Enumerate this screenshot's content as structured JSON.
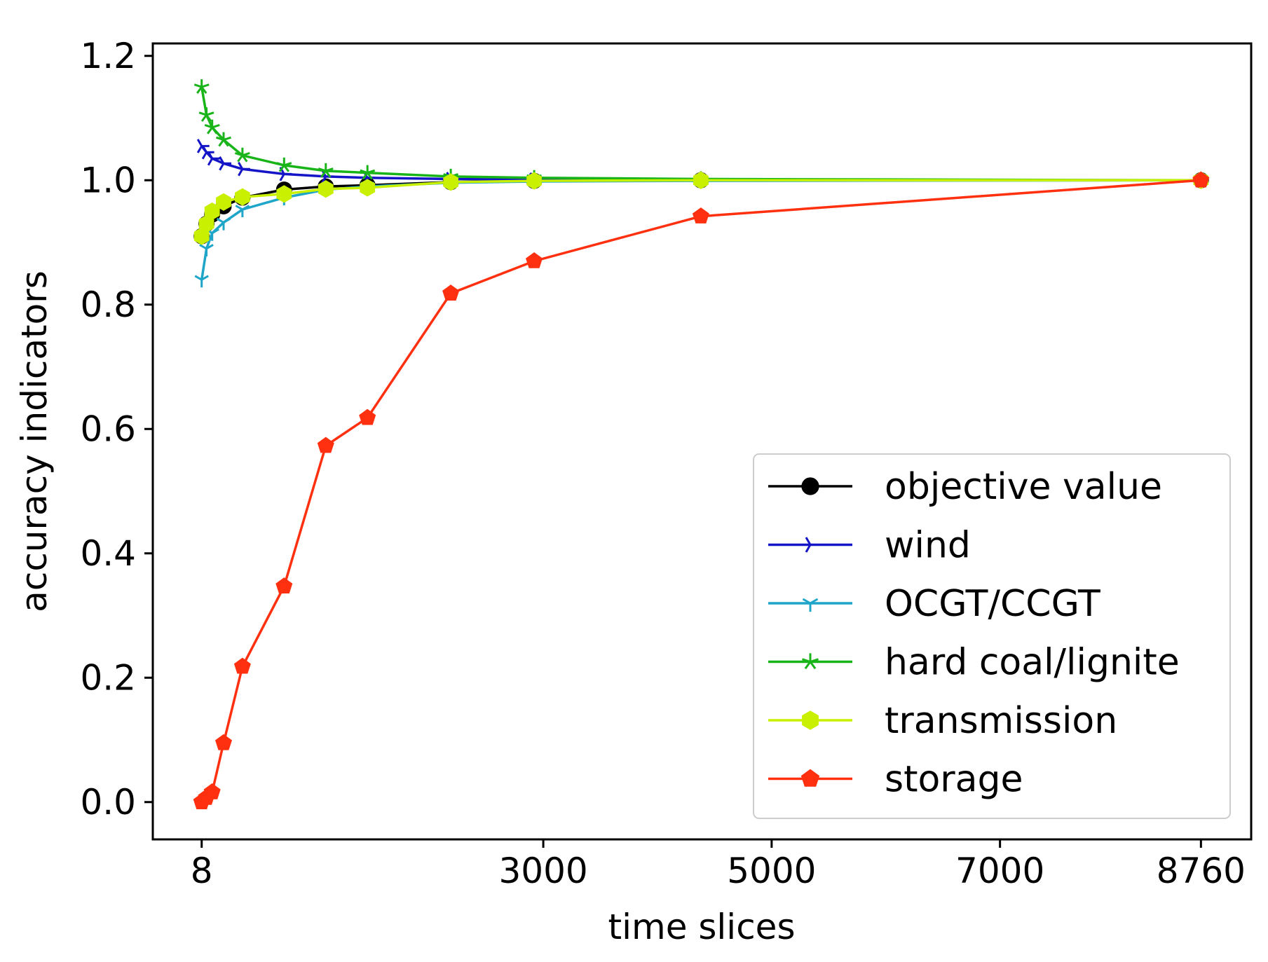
{
  "chart_data": {
    "type": "line",
    "title": "",
    "xlabel": "time slices",
    "ylabel": "accuracy indicators",
    "xlim": [
      -420,
      9200
    ],
    "ylim": [
      -0.06,
      1.22
    ],
    "xticks": [
      8,
      3000,
      5000,
      7000,
      8760
    ],
    "xtick_labels": [
      "8",
      "3000",
      "5000",
      "7000",
      "8760"
    ],
    "yticks": [
      0.0,
      0.2,
      0.4,
      0.6,
      0.8,
      1.0,
      1.2
    ],
    "ytick_labels": [
      "0.0",
      "0.2",
      "0.4",
      "0.6",
      "0.8",
      "1.0",
      "1.2"
    ],
    "grid": false,
    "legend_position": "lower-right",
    "x": [
      8,
      50,
      100,
      200,
      365,
      730,
      1095,
      1460,
      2190,
      2920,
      4380,
      8760
    ],
    "series": [
      {
        "name": "objective value",
        "color": "#000000",
        "marker": "circle",
        "values": [
          0.91,
          0.93,
          0.945,
          0.958,
          0.972,
          0.985,
          0.99,
          0.992,
          0.997,
          0.999,
          1.0,
          1.0
        ]
      },
      {
        "name": "wind",
        "color": "#1515c8",
        "marker": "tri-right",
        "values": [
          1.055,
          1.045,
          1.035,
          1.027,
          1.018,
          1.01,
          1.006,
          1.004,
          1.002,
          1.001,
          1.0,
          1.0
        ]
      },
      {
        "name": "OCGT/CCGT",
        "color": "#1ea5c8",
        "marker": "tri-down",
        "values": [
          0.84,
          0.89,
          0.915,
          0.932,
          0.953,
          0.972,
          0.985,
          0.99,
          0.996,
          0.998,
          0.999,
          1.0
        ]
      },
      {
        "name": "hard coal/lignite",
        "color": "#19b419",
        "marker": "tri-star",
        "values": [
          1.15,
          1.105,
          1.085,
          1.065,
          1.04,
          1.024,
          1.015,
          1.012,
          1.006,
          1.004,
          1.002,
          1.0
        ]
      },
      {
        "name": "transmission",
        "color": "#c8f000",
        "marker": "hexagon",
        "values": [
          0.91,
          0.93,
          0.95,
          0.965,
          0.973,
          0.978,
          0.986,
          0.988,
          0.997,
          0.999,
          1.0,
          1.0
        ]
      },
      {
        "name": "storage",
        "color": "#ff3010",
        "marker": "pentagon",
        "values": [
          0.0,
          0.007,
          0.016,
          0.095,
          0.218,
          0.347,
          0.573,
          0.618,
          0.818,
          0.87,
          0.942,
          1.0
        ]
      }
    ]
  }
}
